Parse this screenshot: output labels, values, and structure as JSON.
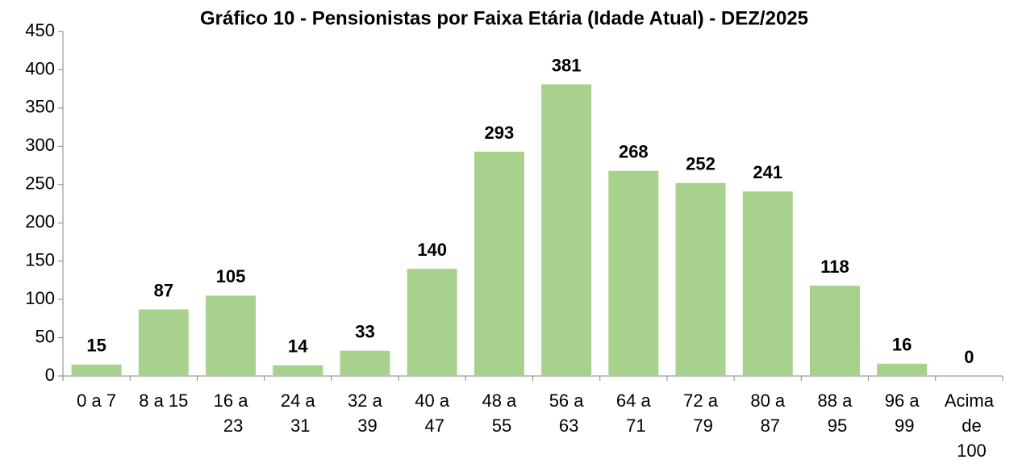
{
  "chart_data": {
    "type": "bar",
    "title": "Gráfico 10 - Pensionistas por Faixa Etária (Idade Atual) - DEZ/2025",
    "categories": [
      "0 a 7",
      "8 a 15",
      "16 a 23",
      "24 a 31",
      "32 a 39",
      "40 a 47",
      "48 a 55",
      "56 a 63",
      "64 a 71",
      "72 a 79",
      "80 a 87",
      "88 a 95",
      "96 a 99",
      "Acima de 100"
    ],
    "values": [
      15,
      87,
      105,
      14,
      33,
      140,
      293,
      381,
      268,
      252,
      241,
      118,
      16,
      0
    ],
    "color": "#a9d18e",
    "ylim": [
      0,
      450
    ],
    "yticks": [
      0,
      50,
      100,
      150,
      200,
      250,
      300,
      350,
      400,
      450
    ],
    "grid": false
  }
}
